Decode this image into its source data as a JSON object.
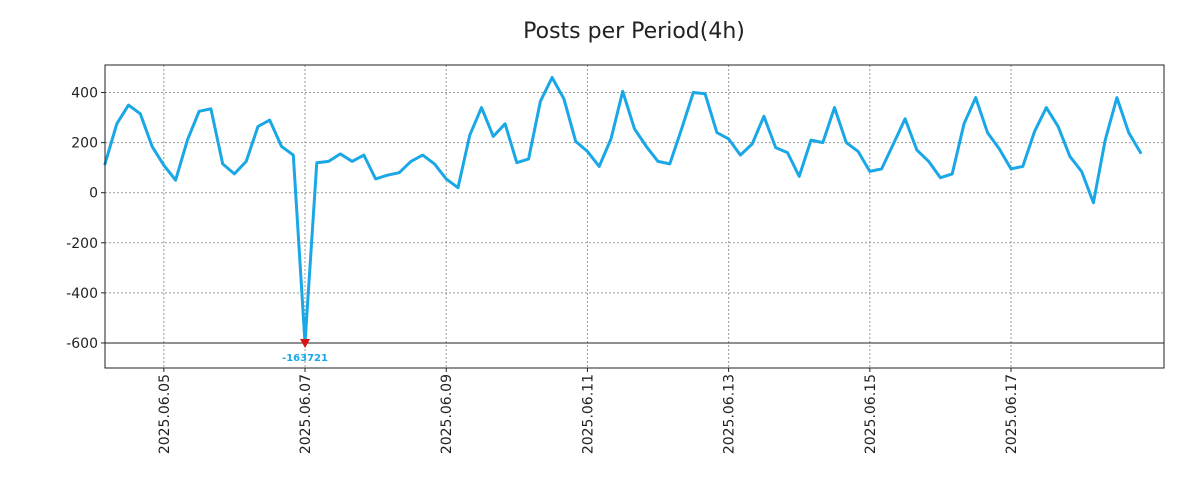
{
  "chart_data": {
    "type": "line",
    "title": "Posts per Period(4h)",
    "xlabel": "",
    "ylabel": "",
    "grid": true,
    "x_start": "2025-06-04 04:00",
    "x_step_hours": 4,
    "xlim": [
      "2025-06-04 04:00",
      "2025-06-19 04:00"
    ],
    "ylim": [
      -700,
      510
    ],
    "yticks": [
      400,
      200,
      0,
      -200,
      -400,
      -600
    ],
    "ytick_labels": [
      "400",
      "200",
      "0",
      "-200",
      "-400",
      "-600"
    ],
    "xticks": [
      "2025-06-05",
      "2025-06-07",
      "2025-06-09",
      "2025-06-11",
      "2025-06-13",
      "2025-06-15",
      "2025-06-17"
    ],
    "xtick_labels": [
      "2025.06.05",
      "2025.06.07",
      "2025.06.09",
      "2025.06.11",
      "2025.06.13",
      "2025.06.15",
      "2025.06.17"
    ],
    "reference_line": -600,
    "series": [
      {
        "color": "#1aa7e6",
        "values": [
          115,
          275,
          350,
          315,
          185,
          110,
          50,
          210,
          325,
          335,
          115,
          75,
          125,
          265,
          290,
          185,
          150,
          -600,
          120,
          125,
          155,
          125,
          150,
          55,
          70,
          80,
          125,
          150,
          115,
          55,
          20,
          230,
          340,
          225,
          275,
          120,
          135,
          365,
          460,
          375,
          205,
          165,
          105,
          215,
          405,
          255,
          185,
          125,
          115,
          255,
          400,
          395,
          240,
          215,
          150,
          195,
          305,
          180,
          160,
          65,
          210,
          200,
          340,
          200,
          165,
          85,
          95,
          195,
          295,
          170,
          125,
          60,
          75,
          275,
          380,
          240,
          175,
          95,
          105,
          245,
          340,
          265,
          145,
          85,
          -40,
          210,
          380,
          240,
          160
        ]
      }
    ],
    "annotation": {
      "label": "-163721",
      "index": 17,
      "marker_color": "#dd1111",
      "text_color": "#1aa7e6"
    }
  }
}
